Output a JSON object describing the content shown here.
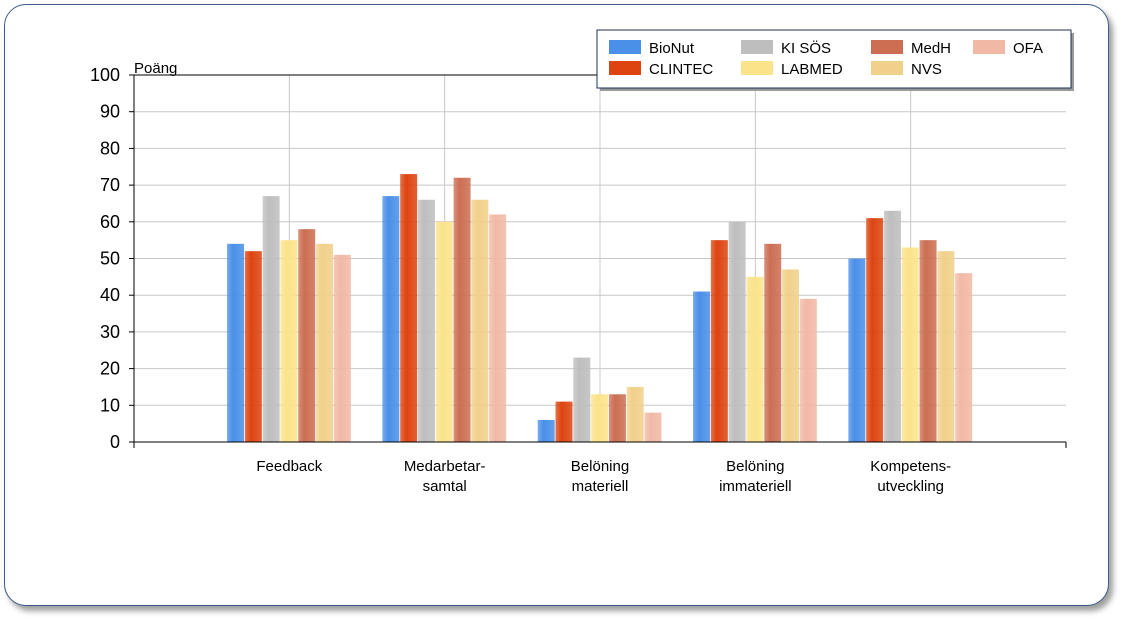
{
  "chart_data": {
    "type": "bar",
    "ylabel": "Poäng",
    "xlabel": "",
    "ylim": [
      0,
      100
    ],
    "y_ticks": [
      "0",
      "10",
      "20",
      "30",
      "40",
      "50",
      "60",
      "70",
      "80",
      "90",
      "100"
    ],
    "grid": true,
    "legend_position": "top-right",
    "categories": [
      [
        "Feedback"
      ],
      [
        "Medarbetar-",
        "samtal"
      ],
      [
        "Belöning",
        "materiell"
      ],
      [
        "Belöning",
        "immateriell"
      ],
      [
        "Kompetens-",
        "utveckling"
      ]
    ],
    "series": [
      {
        "name": "BioNut",
        "color": "#4a8fe8",
        "values": [
          54,
          67,
          6,
          41,
          50
        ]
      },
      {
        "name": "CLINTEC",
        "color": "#dd4410",
        "values": [
          52,
          73,
          11,
          55,
          61
        ]
      },
      {
        "name": "KI SÖS",
        "color": "#bebebe",
        "values": [
          67,
          66,
          23,
          60,
          63
        ]
      },
      {
        "name": "LABMED",
        "color": "#fbe38a",
        "values": [
          55,
          60,
          13,
          45,
          53
        ]
      },
      {
        "name": "MedH",
        "color": "#cc6e52",
        "values": [
          58,
          72,
          13,
          54,
          55
        ]
      },
      {
        "name": "NVS",
        "color": "#f1d08a",
        "values": [
          54,
          66,
          15,
          47,
          52
        ]
      },
      {
        "name": "OFA",
        "color": "#f2b8a6",
        "values": [
          51,
          62,
          8,
          39,
          46
        ]
      }
    ]
  }
}
